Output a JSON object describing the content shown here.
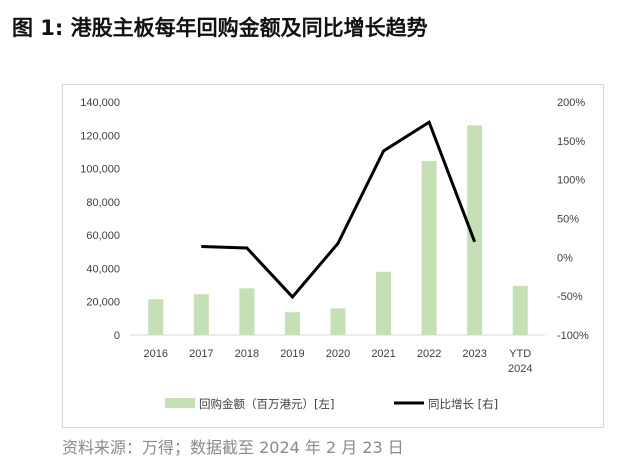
{
  "title": "图 1:  港股主板每年回购金额及同比增长趋势",
  "source": "资料来源：万得；数据截至  2024 年 2 月 23 日",
  "chart_data": {
    "type": "bar+line",
    "categories": [
      "2016",
      "2017",
      "2018",
      "2019",
      "2020",
      "2021",
      "2022",
      "2023",
      "YTD 2024"
    ],
    "category_lines": [
      [
        "2016"
      ],
      [
        "2017"
      ],
      [
        "2018"
      ],
      [
        "2019"
      ],
      [
        "2020"
      ],
      [
        "2021"
      ],
      [
        "2022"
      ],
      [
        "2023"
      ],
      [
        "YTD",
        "2024"
      ]
    ],
    "series": [
      {
        "name": "回购金额（百万港元）[左]",
        "type": "bar",
        "axis": "left",
        "color": "#c5e0b4",
        "values": [
          21500,
          24500,
          28000,
          13700,
          16000,
          38000,
          104500,
          126000,
          29500
        ]
      },
      {
        "name": "同比增长 [右]",
        "type": "line",
        "axis": "right",
        "color": "#000000",
        "values": [
          null,
          14,
          12,
          -51,
          18,
          137,
          174,
          20,
          null
        ]
      }
    ],
    "y_left": {
      "ylim": [
        0,
        140000
      ],
      "ticks": [
        0,
        20000,
        40000,
        60000,
        80000,
        100000,
        120000,
        140000
      ],
      "tick_labels": [
        "0",
        "20,000",
        "40,000",
        "60,000",
        "80,000",
        "100,000",
        "120,000",
        "140,000"
      ]
    },
    "y_right": {
      "ylim": [
        -100,
        200
      ],
      "ticks": [
        -100,
        -50,
        0,
        50,
        100,
        150,
        200
      ],
      "tick_labels": [
        "-100%",
        "-50%",
        "0%",
        "50%",
        "100%",
        "150%",
        "200%"
      ]
    },
    "grid": false,
    "legend": "bottom",
    "legend_labels": [
      "回购金额（百万港元）[左]",
      "同比增长 [右]"
    ]
  }
}
